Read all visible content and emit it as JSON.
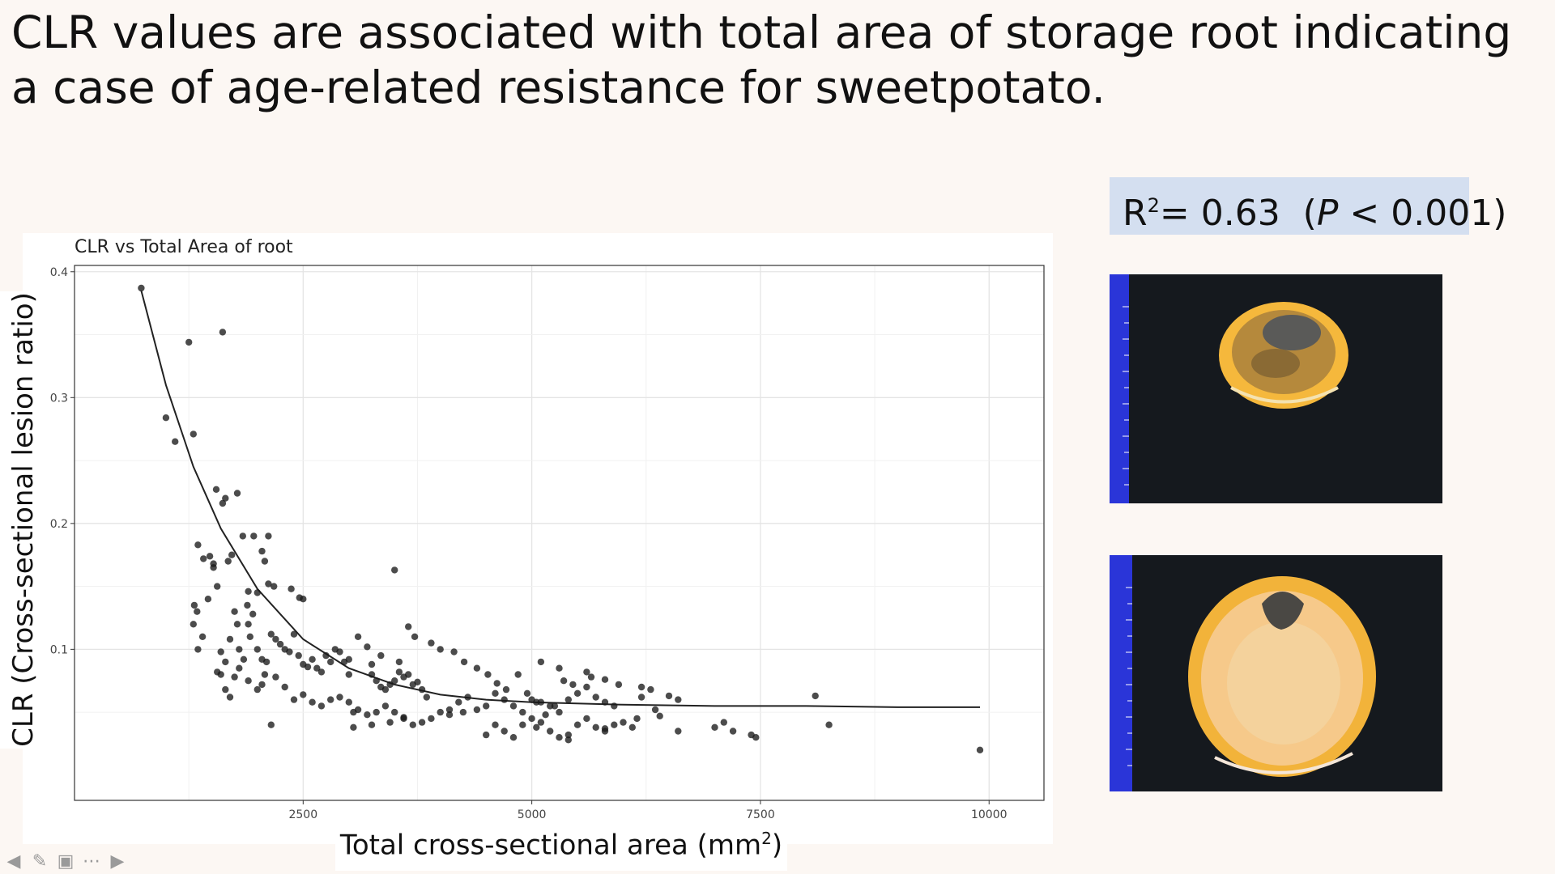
{
  "slide": {
    "title": "CLR values are associated with total area of storage root indicating a case of age-related resistance for sweetpotato.",
    "stat": {
      "r_label": "R",
      "r_exp": "2",
      "r_value": "= 0.63",
      "p_open": "(",
      "p_letter": "P",
      "p_rest": " < 0.001)"
    },
    "ylabel": "CLR (Cross-sectional lesion ratio)",
    "xlabel_main": "Total cross-sectional area (mm",
    "xlabel_exp": "2",
    "xlabel_end": ")"
  },
  "icons": {
    "prev": "arrow-left-icon",
    "pen": "pen-icon",
    "slides": "slides-icon",
    "more": "more-icon",
    "next": "arrow-right-icon"
  },
  "colors": {
    "background": "#fcf7f3",
    "stat_box": "#d4dff0",
    "points": "#1a1a1a",
    "ruler": "#2a35d8",
    "flesh": "#f2b33a"
  },
  "chart_data": {
    "type": "scatter",
    "title": "CLR vs Total Area of root",
    "xlim": [
      0,
      10600
    ],
    "ylim": [
      -0.02,
      0.405
    ],
    "xticks": [
      2500,
      5000,
      7500,
      10000
    ],
    "yticks": [
      0.1,
      0.2,
      0.3,
      0.4
    ],
    "grid": true,
    "fit": {
      "type": "exponential-decay",
      "x": [
        730,
        1000,
        1300,
        1600,
        2000,
        2500,
        3000,
        3500,
        4000,
        4500,
        5000,
        6000,
        7000,
        8000,
        9000,
        9900
      ],
      "y": [
        0.385,
        0.31,
        0.245,
        0.196,
        0.148,
        0.108,
        0.085,
        0.072,
        0.064,
        0.06,
        0.058,
        0.056,
        0.055,
        0.055,
        0.054,
        0.054
      ]
    },
    "points": [
      [
        730,
        0.387
      ],
      [
        1000,
        0.284
      ],
      [
        1100,
        0.265
      ],
      [
        1250,
        0.344
      ],
      [
        1300,
        0.271
      ],
      [
        1620,
        0.352
      ],
      [
        1550,
        0.227
      ],
      [
        1620,
        0.216
      ],
      [
        1650,
        0.22
      ],
      [
        1780,
        0.224
      ],
      [
        1840,
        0.19
      ],
      [
        1960,
        0.19
      ],
      [
        2050,
        0.178
      ],
      [
        2080,
        0.17
      ],
      [
        2120,
        0.19
      ],
      [
        1350,
        0.183
      ],
      [
        1410,
        0.172
      ],
      [
        1480,
        0.174
      ],
      [
        1520,
        0.168
      ],
      [
        1680,
        0.17
      ],
      [
        1720,
        0.175
      ],
      [
        1520,
        0.165
      ],
      [
        1900,
        0.146
      ],
      [
        2000,
        0.145
      ],
      [
        2120,
        0.152
      ],
      [
        2180,
        0.15
      ],
      [
        2370,
        0.148
      ],
      [
        2460,
        0.141
      ],
      [
        2500,
        0.14
      ],
      [
        1300,
        0.12
      ],
      [
        1310,
        0.135
      ],
      [
        1340,
        0.13
      ],
      [
        1350,
        0.1
      ],
      [
        1400,
        0.11
      ],
      [
        1460,
        0.14
      ],
      [
        1560,
        0.15
      ],
      [
        1600,
        0.098
      ],
      [
        1650,
        0.09
      ],
      [
        1700,
        0.108
      ],
      [
        1750,
        0.13
      ],
      [
        1780,
        0.12
      ],
      [
        1800,
        0.1
      ],
      [
        1850,
        0.092
      ],
      [
        1890,
        0.135
      ],
      [
        1900,
        0.12
      ],
      [
        1920,
        0.11
      ],
      [
        1950,
        0.128
      ],
      [
        2000,
        0.1
      ],
      [
        2050,
        0.092
      ],
      [
        2080,
        0.08
      ],
      [
        2100,
        0.09
      ],
      [
        2150,
        0.112
      ],
      [
        2200,
        0.108
      ],
      [
        2250,
        0.104
      ],
      [
        2300,
        0.1
      ],
      [
        2350,
        0.098
      ],
      [
        2400,
        0.112
      ],
      [
        2450,
        0.095
      ],
      [
        2500,
        0.088
      ],
      [
        2550,
        0.086
      ],
      [
        2600,
        0.092
      ],
      [
        2650,
        0.085
      ],
      [
        2700,
        0.082
      ],
      [
        2750,
        0.095
      ],
      [
        2800,
        0.09
      ],
      [
        2850,
        0.1
      ],
      [
        2900,
        0.098
      ],
      [
        2950,
        0.09
      ],
      [
        3000,
        0.092
      ],
      [
        3100,
        0.11
      ],
      [
        3200,
        0.102
      ],
      [
        3250,
        0.08
      ],
      [
        3300,
        0.075
      ],
      [
        3350,
        0.07
      ],
      [
        3400,
        0.068
      ],
      [
        3450,
        0.072
      ],
      [
        3500,
        0.075
      ],
      [
        3550,
        0.082
      ],
      [
        3600,
        0.078
      ],
      [
        3650,
        0.08
      ],
      [
        3700,
        0.072
      ],
      [
        3750,
        0.074
      ],
      [
        3800,
        0.068
      ],
      [
        3850,
        0.062
      ],
      [
        1560,
        0.082
      ],
      [
        1600,
        0.08
      ],
      [
        1650,
        0.068
      ],
      [
        1700,
        0.062
      ],
      [
        1750,
        0.078
      ],
      [
        1800,
        0.085
      ],
      [
        1900,
        0.075
      ],
      [
        2000,
        0.068
      ],
      [
        2050,
        0.072
      ],
      [
        2200,
        0.078
      ],
      [
        2300,
        0.07
      ],
      [
        2400,
        0.06
      ],
      [
        2500,
        0.064
      ],
      [
        2600,
        0.058
      ],
      [
        2700,
        0.055
      ],
      [
        2800,
        0.06
      ],
      [
        2900,
        0.062
      ],
      [
        3000,
        0.058
      ],
      [
        3050,
        0.05
      ],
      [
        3100,
        0.052
      ],
      [
        3200,
        0.048
      ],
      [
        3300,
        0.05
      ],
      [
        3400,
        0.055
      ],
      [
        3500,
        0.05
      ],
      [
        3600,
        0.046
      ],
      [
        3700,
        0.04
      ],
      [
        3800,
        0.042
      ],
      [
        3900,
        0.045
      ],
      [
        4000,
        0.05
      ],
      [
        4100,
        0.052
      ],
      [
        4200,
        0.058
      ],
      [
        4300,
        0.062
      ],
      [
        4400,
        0.052
      ],
      [
        4500,
        0.055
      ],
      [
        4600,
        0.065
      ],
      [
        4700,
        0.06
      ],
      [
        4800,
        0.055
      ],
      [
        4900,
        0.05
      ],
      [
        5000,
        0.06
      ],
      [
        5100,
        0.058
      ],
      [
        5200,
        0.055
      ],
      [
        5300,
        0.05
      ],
      [
        5400,
        0.06
      ],
      [
        5500,
        0.065
      ],
      [
        5600,
        0.07
      ],
      [
        5700,
        0.062
      ],
      [
        5800,
        0.058
      ],
      [
        5900,
        0.055
      ],
      [
        3500,
        0.163
      ],
      [
        3650,
        0.118
      ],
      [
        3000,
        0.08
      ],
      [
        3250,
        0.088
      ],
      [
        3350,
        0.095
      ],
      [
        3550,
        0.09
      ],
      [
        3720,
        0.11
      ],
      [
        3900,
        0.105
      ],
      [
        4000,
        0.1
      ],
      [
        4150,
        0.098
      ],
      [
        4260,
        0.09
      ],
      [
        4400,
        0.085
      ],
      [
        4520,
        0.08
      ],
      [
        4620,
        0.073
      ],
      [
        4720,
        0.068
      ],
      [
        4850,
        0.08
      ],
      [
        5100,
        0.09
      ],
      [
        5300,
        0.085
      ],
      [
        5350,
        0.075
      ],
      [
        5450,
        0.072
      ],
      [
        5600,
        0.082
      ],
      [
        5650,
        0.078
      ],
      [
        5800,
        0.076
      ],
      [
        5950,
        0.072
      ],
      [
        6200,
        0.07
      ],
      [
        6300,
        0.068
      ],
      [
        6500,
        0.063
      ],
      [
        6600,
        0.06
      ],
      [
        4500,
        0.032
      ],
      [
        4600,
        0.04
      ],
      [
        4700,
        0.035
      ],
      [
        4800,
        0.03
      ],
      [
        4900,
        0.04
      ],
      [
        5000,
        0.045
      ],
      [
        5050,
        0.038
      ],
      [
        5100,
        0.042
      ],
      [
        5200,
        0.035
      ],
      [
        5300,
        0.03
      ],
      [
        5400,
        0.028
      ],
      [
        5500,
        0.04
      ],
      [
        5600,
        0.045
      ],
      [
        5700,
        0.038
      ],
      [
        5800,
        0.035
      ],
      [
        5900,
        0.04
      ],
      [
        6000,
        0.042
      ],
      [
        6100,
        0.038
      ],
      [
        6400,
        0.047
      ],
      [
        6600,
        0.035
      ],
      [
        7000,
        0.038
      ],
      [
        7100,
        0.042
      ],
      [
        7200,
        0.035
      ],
      [
        7400,
        0.032
      ],
      [
        7450,
        0.03
      ],
      [
        8100,
        0.063
      ],
      [
        8250,
        0.04
      ],
      [
        9900,
        0.02
      ],
      [
        3050,
        0.038
      ],
      [
        3250,
        0.04
      ],
      [
        3450,
        0.042
      ],
      [
        3600,
        0.045
      ],
      [
        4100,
        0.048
      ],
      [
        4250,
        0.05
      ],
      [
        2150,
        0.04
      ],
      [
        5150,
        0.048
      ],
      [
        5250,
        0.055
      ],
      [
        5400,
        0.032
      ],
      [
        5800,
        0.037
      ],
      [
        6150,
        0.045
      ],
      [
        6200,
        0.062
      ],
      [
        6350,
        0.052
      ],
      [
        4950,
        0.065
      ],
      [
        5050,
        0.058
      ]
    ]
  }
}
